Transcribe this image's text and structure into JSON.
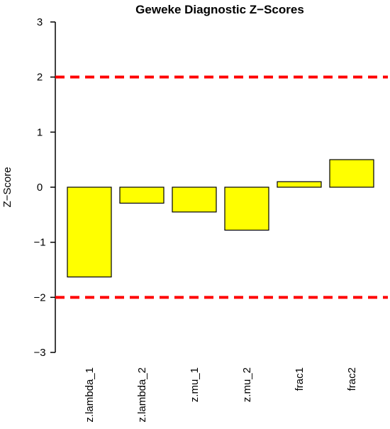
{
  "chart_data": {
    "type": "bar",
    "title": "Geweke Diagnostic Z−Scores",
    "xlabel": "",
    "ylabel": "Z−Score",
    "categories": [
      "z.lambda_1",
      "z.lambda_2",
      "z.mu_1",
      "z.mu_2",
      "frac1",
      "frac2"
    ],
    "values": [
      -1.63,
      -0.29,
      -0.45,
      -0.78,
      0.1,
      0.5
    ],
    "ylim": [
      -3,
      3
    ],
    "yticks": [
      3,
      2,
      1,
      0,
      -1,
      -2,
      -3
    ],
    "ytick_labels": [
      "3",
      "2",
      "1",
      "0",
      "−1",
      "−2",
      "−3"
    ],
    "reference_lines": [
      2,
      -2
    ],
    "grid": false,
    "legend": "none",
    "colors": {
      "bar_fill": "#FFFF00",
      "bar_stroke": "#000000",
      "reference_line": "#FF0000",
      "axis": "#000000"
    }
  }
}
